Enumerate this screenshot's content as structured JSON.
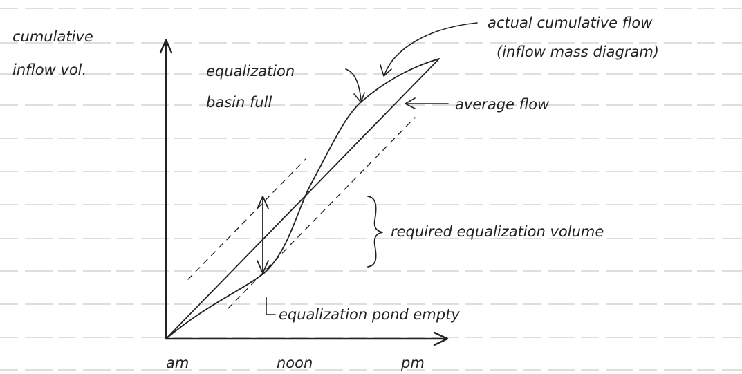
{
  "y_axis_label": [
    "cumulative",
    "inflow vol."
  ],
  "x_labels": [
    "am",
    "noon",
    "pm"
  ],
  "annotations": {
    "actual_flow": [
      "actual cumulative flow",
      "(inflow mass diagram)"
    ],
    "basin_full": [
      "equalization",
      "basin full"
    ],
    "average_flow": "average flow",
    "required_volume": "required equalization volume",
    "pond_empty": "equalization pond empty"
  }
}
